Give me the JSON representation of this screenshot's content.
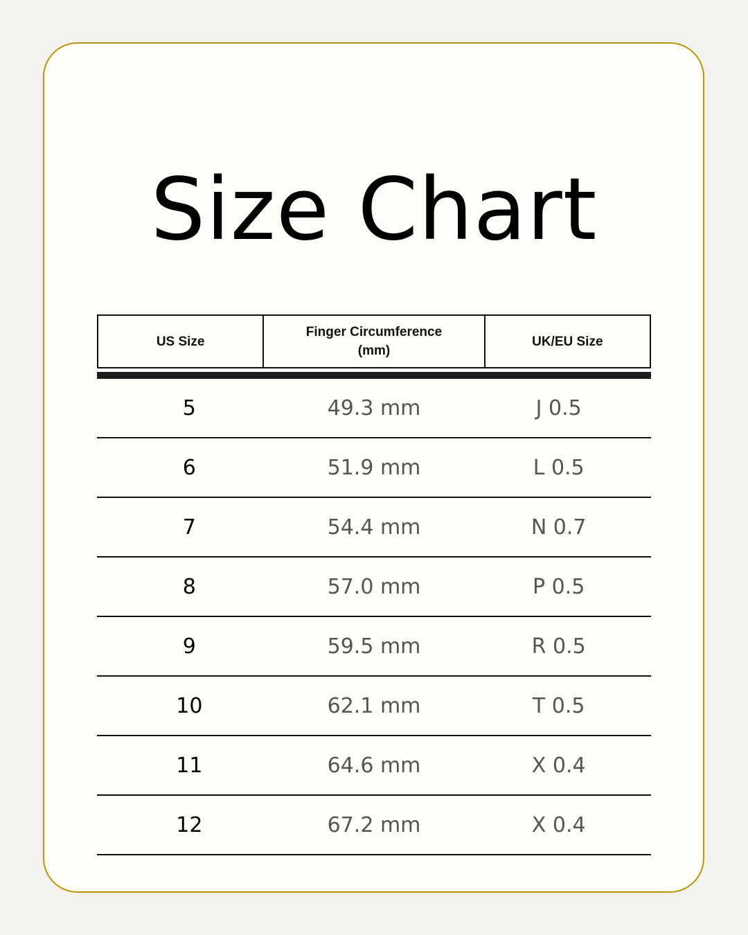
{
  "title": "Size Chart",
  "colors": {
    "border": "#b8960c",
    "card": "#fefdf8",
    "background": "#f3f2ee"
  },
  "headers": [
    "US Size",
    "Finger Circumference (mm)",
    "UK/EU Size"
  ],
  "rows": [
    {
      "us": "5",
      "mm": "49.3 mm",
      "uk": "J 0.5"
    },
    {
      "us": "6",
      "mm": "51.9 mm",
      "uk": "L 0.5"
    },
    {
      "us": "7",
      "mm": "54.4 mm",
      "uk": "N 0.7"
    },
    {
      "us": "8",
      "mm": "57.0 mm",
      "uk": "P 0.5"
    },
    {
      "us": "9",
      "mm": "59.5 mm",
      "uk": "R 0.5"
    },
    {
      "us": "10",
      "mm": "62.1 mm",
      "uk": "T 0.5"
    },
    {
      "us": "11",
      "mm": "64.6 mm",
      "uk": "X 0.4"
    },
    {
      "us": "12",
      "mm": "67.2 mm",
      "uk": "X 0.4"
    }
  ]
}
